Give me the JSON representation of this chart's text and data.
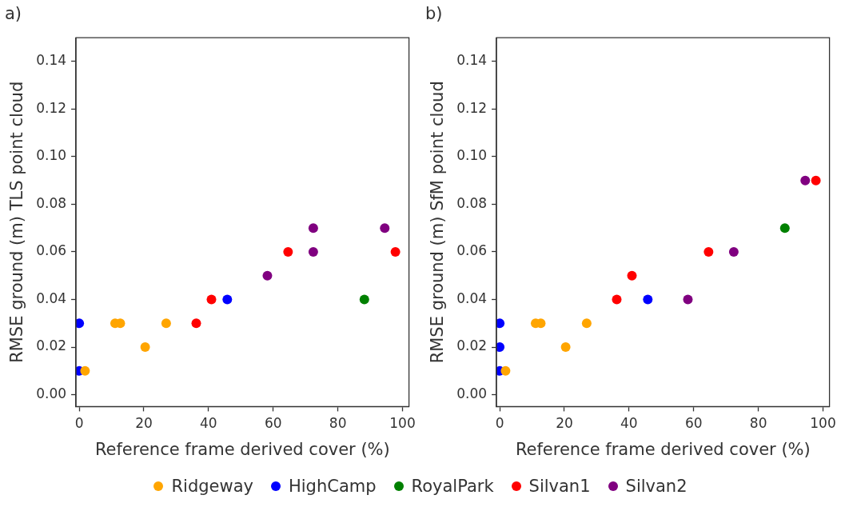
{
  "chart_data": [
    {
      "type": "scatter",
      "title": "a)",
      "xlabel": "Reference frame derived cover (%)",
      "ylabel": "RMSE ground (m) TLS point cloud",
      "xlim": [
        -1,
        102
      ],
      "xticks": [
        0,
        20,
        40,
        60,
        80,
        100
      ],
      "ylim": [
        -0.005,
        0.15
      ],
      "yticks": [
        {
          "value": 0,
          "label": "0.00"
        },
        {
          "value": 0.02,
          "label": "0.02"
        },
        {
          "value": 0.04,
          "label": "0.04"
        },
        {
          "value": 0.06,
          "label": "0.06"
        },
        {
          "value": 0.08,
          "label": "0.08"
        },
        {
          "value": 0.1,
          "label": "0.10"
        },
        {
          "value": 0.12,
          "label": "0.12"
        },
        {
          "value": 0.14,
          "label": "0.14"
        }
      ],
      "grid": false,
      "marker": "circle",
      "legend": "bottom",
      "series": [
        {
          "name": "Ridgeway",
          "color": "#ffa500",
          "x": [
            1.8,
            11.1,
            12.7,
            20.4,
            26.9
          ],
          "values": [
            0.01,
            0.03,
            0.03,
            0.02,
            0.03
          ]
        },
        {
          "name": "HighCamp",
          "color": "#0000ff",
          "x": [
            0,
            0,
            45.8
          ],
          "values": [
            0.03,
            0.01,
            0.04
          ]
        },
        {
          "name": "RoyalPark",
          "color": "#008000",
          "x": [
            88.2
          ],
          "values": [
            0.04
          ]
        },
        {
          "name": "Silvan1",
          "color": "#ff0000",
          "x": [
            36.2,
            40.9,
            64.6,
            97.8
          ],
          "values": [
            0.03,
            0.04,
            0.06,
            0.06
          ]
        },
        {
          "name": "Silvan2",
          "color": "#800080",
          "x": [
            58.2,
            72.4,
            72.4,
            94.5
          ],
          "values": [
            0.05,
            0.07,
            0.06,
            0.07
          ]
        }
      ]
    },
    {
      "type": "scatter",
      "title": "b)",
      "xlabel": "Reference frame derived cover (%)",
      "ylabel": "RMSE ground (m) SfM point cloud",
      "xlim": [
        -1,
        102
      ],
      "xticks": [
        0,
        20,
        40,
        60,
        80,
        100
      ],
      "ylim": [
        -0.005,
        0.15
      ],
      "yticks": [
        {
          "value": 0,
          "label": "0.00"
        },
        {
          "value": 0.02,
          "label": "0.02"
        },
        {
          "value": 0.04,
          "label": "0.04"
        },
        {
          "value": 0.06,
          "label": "0.06"
        },
        {
          "value": 0.08,
          "label": "0.08"
        },
        {
          "value": 0.1,
          "label": "0.10"
        },
        {
          "value": 0.12,
          "label": "0.12"
        },
        {
          "value": 0.14,
          "label": "0.14"
        }
      ],
      "grid": false,
      "marker": "circle",
      "series": [
        {
          "color": "#ffa500",
          "x": [
            1.8,
            11.1,
            12.7,
            20.4,
            26.9
          ],
          "values": [
            0.01,
            0.03,
            0.03,
            0.02,
            0.03
          ]
        },
        {
          "color": "#0000ff",
          "x": [
            0,
            0,
            0,
            45.8
          ],
          "values": [
            0.03,
            0.02,
            0.01,
            0.04
          ]
        },
        {
          "color": "#008000",
          "x": [
            88.2
          ],
          "values": [
            0.07
          ]
        },
        {
          "color": "#ff0000",
          "x": [
            36.2,
            40.9,
            64.6,
            97.8
          ],
          "values": [
            0.04,
            0.05,
            0.06,
            0.09
          ]
        },
        {
          "color": "#800080",
          "x": [
            58.2,
            72.4,
            94.5
          ],
          "values": [
            0.04,
            0.06,
            0.09
          ]
        }
      ]
    }
  ]
}
